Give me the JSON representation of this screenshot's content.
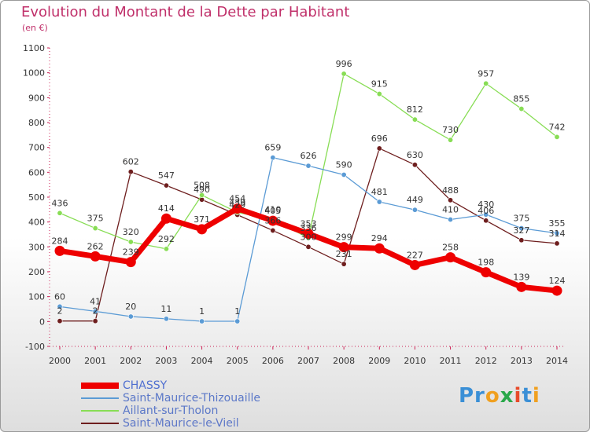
{
  "chart_data": {
    "type": "line",
    "title": "Evolution du Montant de la Dette par Habitant",
    "subtitle": "(en €)",
    "x": [
      "2000",
      "2001",
      "2002",
      "2003",
      "2004",
      "2005",
      "2006",
      "2007",
      "2008",
      "2009",
      "2010",
      "2011",
      "2012",
      "2013",
      "2014"
    ],
    "ylim": [
      -100,
      1100
    ],
    "yticks": [
      -100,
      0,
      100,
      200,
      300,
      400,
      500,
      600,
      700,
      800,
      900,
      1000,
      1100
    ],
    "grid": false,
    "legend_position": "bottom-left",
    "series": [
      {
        "name": "CHASSY",
        "color": "#ee0000",
        "values": [
          284,
          262,
          239,
          414,
          371,
          454,
          405,
          353,
          299,
          294,
          227,
          258,
          198,
          139,
          124
        ]
      },
      {
        "name": "Saint-Maurice-Thizouaille",
        "color": "#5b9bd5",
        "values": [
          60,
          41,
          20,
          11,
          1,
          1,
          659,
          626,
          590,
          481,
          449,
          410,
          430,
          375,
          355
        ]
      },
      {
        "name": "Aillant-sur-Tholon",
        "color": "#88dd55",
        "values": [
          436,
          375,
          320,
          292,
          508,
          439,
          410,
          336,
          996,
          915,
          812,
          730,
          957,
          855,
          742
        ]
      },
      {
        "name": "Saint-Maurice-le-Vieil",
        "color": "#6e1e1e",
        "values": [
          2,
          2,
          602,
          547,
          490,
          429,
          366,
          300,
          231,
          696,
          630,
          488,
          406,
          327,
          314
        ]
      }
    ]
  },
  "brand": {
    "p1": "Pr",
    "o": "o",
    "x": "x",
    "i1": "i",
    "t": "t",
    "i2": "i"
  }
}
